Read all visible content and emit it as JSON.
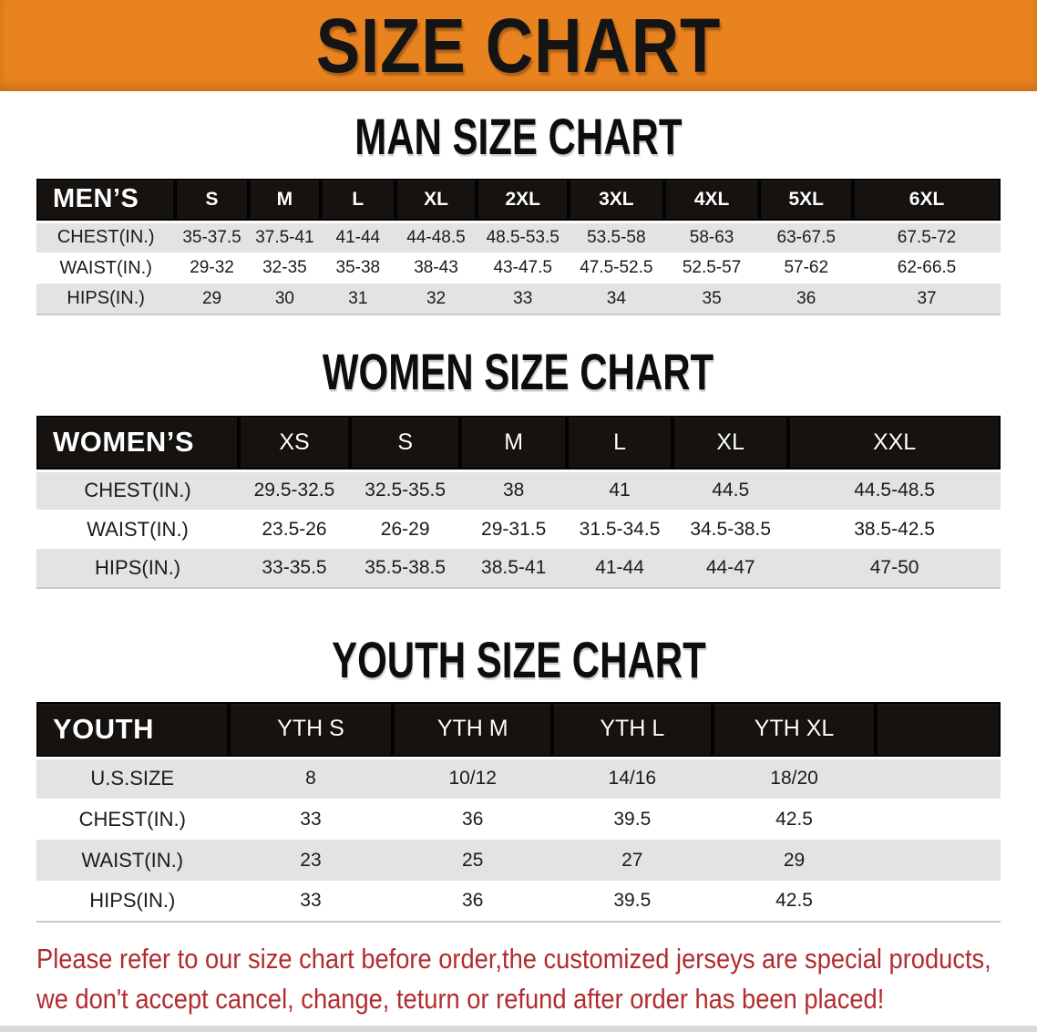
{
  "banner": {
    "title": "SIZE CHART"
  },
  "sections": [
    {
      "id": "men",
      "title": "MAN SIZE CHART",
      "header_label": "MEN’S",
      "columns": [
        "S",
        "M",
        "L",
        "XL",
        "2XL",
        "3XL",
        "4XL",
        "5XL",
        "6XL"
      ],
      "rows": [
        {
          "label": "CHEST(IN.)",
          "values": [
            "35-37.5",
            "37.5-41",
            "41-44",
            "44-48.5",
            "48.5-53.5",
            "53.5-58",
            "58-63",
            "63-67.5",
            "67.5-72"
          ]
        },
        {
          "label": "WAIST(IN.)",
          "values": [
            "29-32",
            "32-35",
            "35-38",
            "38-43",
            "43-47.5",
            "47.5-52.5",
            "52.5-57",
            "57-62",
            "62-66.5"
          ]
        },
        {
          "label": "HIPS(IN.)",
          "values": [
            "29",
            "30",
            "31",
            "32",
            "33",
            "34",
            "35",
            "36",
            "37"
          ]
        }
      ]
    },
    {
      "id": "women",
      "title": "WOMEN SIZE CHART",
      "header_label": "WOMEN’S",
      "columns": [
        "XS",
        "S",
        "M",
        "L",
        "XL",
        "XXL"
      ],
      "rows": [
        {
          "label": "CHEST(IN.)",
          "values": [
            "29.5-32.5",
            "32.5-35.5",
            "38",
            "41",
            "44.5",
            "44.5-48.5"
          ]
        },
        {
          "label": "WAIST(IN.)",
          "values": [
            "23.5-26",
            "26-29",
            "29-31.5",
            "31.5-34.5",
            "34.5-38.5",
            "38.5-42.5"
          ]
        },
        {
          "label": "HIPS(IN.)",
          "values": [
            "33-35.5",
            "35.5-38.5",
            "38.5-41",
            "41-44",
            "44-47",
            "47-50"
          ]
        }
      ]
    },
    {
      "id": "youth",
      "title": "YOUTH SIZE CHART",
      "header_label": "YOUTH",
      "columns": [
        "YTH S",
        "YTH M",
        "YTH L",
        "YTH XL"
      ],
      "rows": [
        {
          "label": "U.S.SIZE",
          "values": [
            "8",
            "10/12",
            "14/16",
            "18/20"
          ]
        },
        {
          "label": "CHEST(IN.)",
          "values": [
            "33",
            "36",
            "39.5",
            "42.5"
          ]
        },
        {
          "label": "WAIST(IN.)",
          "values": [
            "23",
            "25",
            "27",
            "29"
          ]
        },
        {
          "label": "HIPS(IN.)",
          "values": [
            "33",
            "36",
            "39.5",
            "42.5"
          ]
        }
      ]
    }
  ],
  "footer": {
    "line1": "Please refer to our size chart before order,the customized jerseys are special products,",
    "line2": "we don't accept cancel, change, teturn or refund after order has been placed!"
  },
  "colors": {
    "banner_orange": "#E8831F",
    "header_black": "#16120F",
    "row_gray": "#E3E3E3",
    "note_red": "#B22C2E"
  }
}
